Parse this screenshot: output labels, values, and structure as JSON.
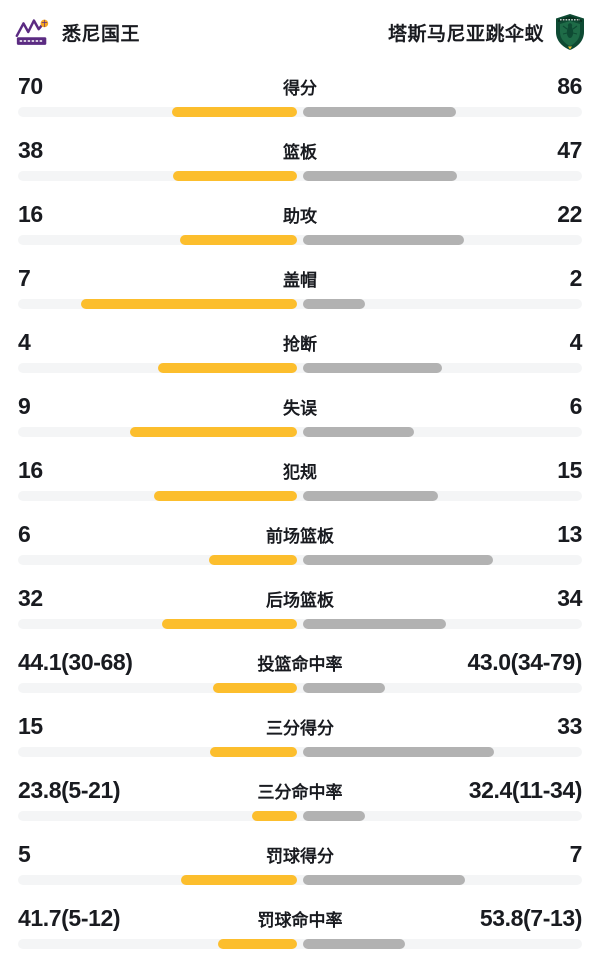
{
  "header": {
    "home_team": {
      "name": "悉尼国王",
      "logo": "sydney-kings-logo"
    },
    "away_team": {
      "name": "塔斯马尼亚跳伞蚁",
      "logo": "jackjumpers-logo"
    }
  },
  "colors": {
    "home_bar": "#fcbe2d",
    "away_bar": "#b2b2b2",
    "track": "#f4f5f6",
    "text": "#191b20",
    "home_logo_purple": "#5b2b82",
    "away_logo_green": "#0e4a33"
  },
  "stats": [
    {
      "label": "得分",
      "home": "70",
      "away": "86",
      "home_num": 70,
      "away_num": 86,
      "type": "count"
    },
    {
      "label": "篮板",
      "home": "38",
      "away": "47",
      "home_num": 38,
      "away_num": 47,
      "type": "count"
    },
    {
      "label": "助攻",
      "home": "16",
      "away": "22",
      "home_num": 16,
      "away_num": 22,
      "type": "count"
    },
    {
      "label": "盖帽",
      "home": "7",
      "away": "2",
      "home_num": 7,
      "away_num": 2,
      "type": "count"
    },
    {
      "label": "抢断",
      "home": "4",
      "away": "4",
      "home_num": 4,
      "away_num": 4,
      "type": "count"
    },
    {
      "label": "失误",
      "home": "9",
      "away": "6",
      "home_num": 9,
      "away_num": 6,
      "type": "count"
    },
    {
      "label": "犯规",
      "home": "16",
      "away": "15",
      "home_num": 16,
      "away_num": 15,
      "type": "count"
    },
    {
      "label": "前场篮板",
      "home": "6",
      "away": "13",
      "home_num": 6,
      "away_num": 13,
      "type": "count"
    },
    {
      "label": "后场篮板",
      "home": "32",
      "away": "34",
      "home_num": 32,
      "away_num": 34,
      "type": "count"
    },
    {
      "label": "投篮命中率",
      "home": "44.1(30-68)",
      "away": "43.0(34-79)",
      "home_num": 44.1,
      "away_num": 43.0,
      "type": "percent"
    },
    {
      "label": "三分得分",
      "home": "15",
      "away": "33",
      "home_num": 15,
      "away_num": 33,
      "type": "count"
    },
    {
      "label": "三分命中率",
      "home": "23.8(5-21)",
      "away": "32.4(11-34)",
      "home_num": 23.8,
      "away_num": 32.4,
      "type": "percent"
    },
    {
      "label": "罚球得分",
      "home": "5",
      "away": "7",
      "home_num": 5,
      "away_num": 7,
      "type": "count"
    },
    {
      "label": "罚球命中率",
      "home": "41.7(5-12)",
      "away": "53.8(7-13)",
      "home_num": 41.7,
      "away_num": 53.8,
      "type": "percent"
    }
  ],
  "chart_data": {
    "type": "bar",
    "orientation": "horizontal-paired",
    "categories": [
      "得分",
      "篮板",
      "助攻",
      "盖帽",
      "抢断",
      "失误",
      "犯规",
      "前场篮板",
      "后场篮板",
      "投篮命中率",
      "三分得分",
      "三分命中率",
      "罚球得分",
      "罚球命中率"
    ],
    "series": [
      {
        "name": "悉尼国王",
        "values": [
          70,
          38,
          16,
          7,
          4,
          9,
          16,
          6,
          32,
          44.1,
          15,
          23.8,
          5,
          41.7
        ],
        "color": "#fcbe2d"
      },
      {
        "name": "塔斯马尼亚跳伞蚁",
        "values": [
          86,
          47,
          22,
          2,
          4,
          6,
          15,
          13,
          34,
          43.0,
          33,
          32.4,
          7,
          53.8
        ],
        "color": "#b2b2b2"
      }
    ],
    "value_labels": [
      [
        "70",
        "86"
      ],
      [
        "38",
        "47"
      ],
      [
        "16",
        "22"
      ],
      [
        "7",
        "2"
      ],
      [
        "4",
        "4"
      ],
      [
        "9",
        "6"
      ],
      [
        "16",
        "15"
      ],
      [
        "6",
        "13"
      ],
      [
        "32",
        "34"
      ],
      [
        "44.1(30-68)",
        "43.0(34-79)"
      ],
      [
        "15",
        "33"
      ],
      [
        "23.8(5-21)",
        "32.4(11-34)"
      ],
      [
        "5",
        "7"
      ],
      [
        "41.7(5-12)",
        "53.8(7-13)"
      ]
    ],
    "legend_position": "top",
    "grid": false
  }
}
